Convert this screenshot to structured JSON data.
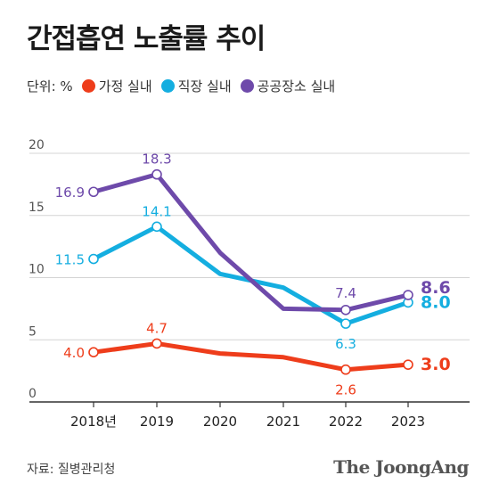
{
  "title": "간접흡연 노출률 추이",
  "legend": {
    "unit_label": "단위: %",
    "items": [
      {
        "label": "가정 실내",
        "color": "#ee3d1b"
      },
      {
        "label": "직장 실내",
        "color": "#14aee0"
      },
      {
        "label": "공공장소 실내",
        "color": "#6e4aaa"
      }
    ]
  },
  "source": "자료: 질병관리청",
  "logo": "The JoongAng",
  "chart_data": {
    "type": "line",
    "x": [
      "2018년",
      "2019",
      "2020",
      "2021",
      "2022",
      "2023"
    ],
    "ylim": [
      0,
      20
    ],
    "yticks": [
      0,
      5,
      10,
      15,
      20
    ],
    "grid": true,
    "series": [
      {
        "name": "가정 실내",
        "color": "#ee3d1b",
        "values": [
          4.0,
          4.7,
          3.9,
          3.6,
          2.6,
          3.0
        ],
        "labels": [
          "4.0",
          "4.7",
          null,
          null,
          "2.6",
          "3.0"
        ],
        "markers": [
          true,
          true,
          false,
          false,
          true,
          true
        ]
      },
      {
        "name": "직장 실내",
        "color": "#14aee0",
        "values": [
          11.5,
          14.1,
          10.3,
          9.2,
          6.3,
          8.0
        ],
        "labels": [
          "11.5",
          "14.1",
          null,
          null,
          "6.3",
          "8.0"
        ],
        "markers": [
          true,
          true,
          false,
          false,
          true,
          true
        ]
      },
      {
        "name": "공공장소 실내",
        "color": "#6e4aaa",
        "values": [
          16.9,
          18.3,
          12.0,
          7.5,
          7.4,
          8.6
        ],
        "labels": [
          "16.9",
          "18.3",
          null,
          null,
          "7.4",
          "8.6"
        ],
        "markers": [
          true,
          true,
          false,
          false,
          true,
          true
        ]
      }
    ]
  }
}
